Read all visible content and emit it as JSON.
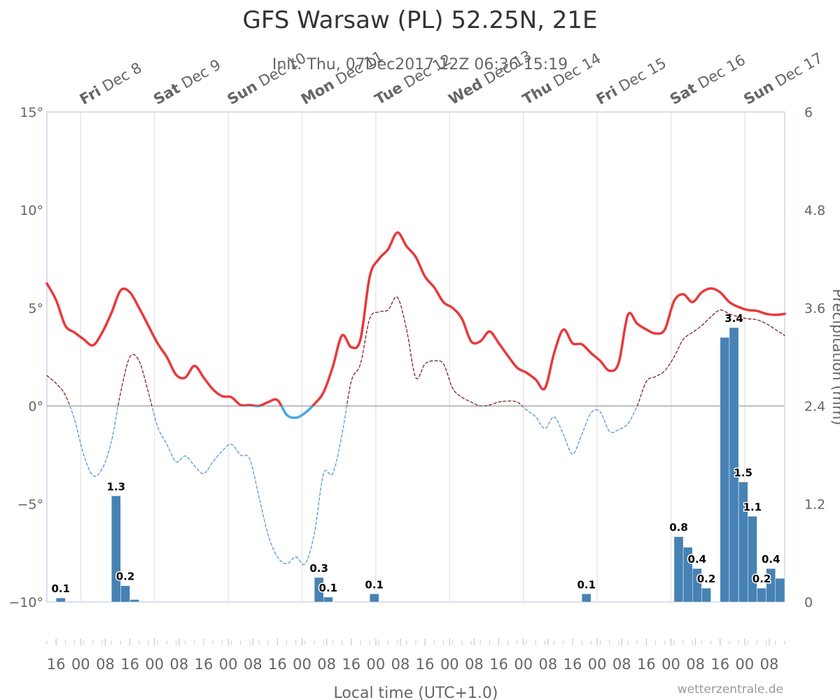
{
  "chart_data": {
    "type": "line",
    "title": "GFS Warsaw (PL) 52.25N, 21E",
    "subtitle": "Init: Thu, 07Dec2017 12Z 06:36 15:19",
    "x_label": "Local time (UTC+1.0)",
    "y2_label": "Precipitation (mm)",
    "credit": "wetterzentrale.de",
    "xlim": [
      0,
      240
    ],
    "ylim": [
      -10,
      15
    ],
    "yticks": [
      {
        "value": -10,
        "label": "−10°"
      },
      {
        "value": -5,
        "label": "−5°"
      },
      {
        "value": 0,
        "label": "0°"
      },
      {
        "value": 5,
        "label": "5°"
      },
      {
        "value": 10,
        "label": "10°"
      },
      {
        "value": 15,
        "label": "15°"
      }
    ],
    "y2lim": [
      0,
      6
    ],
    "y2ticks": [
      0,
      1.2,
      2.4,
      3.6,
      4.8,
      6
    ],
    "threshold": 0,
    "xticks": [
      {
        "value": 3,
        "label": "16"
      },
      {
        "value": 11,
        "label": "00"
      },
      {
        "value": 19,
        "label": "08"
      },
      {
        "value": 27,
        "label": "16"
      },
      {
        "value": 35,
        "label": "00"
      },
      {
        "value": 43,
        "label": "08"
      },
      {
        "value": 51,
        "label": "16"
      },
      {
        "value": 59,
        "label": "00"
      },
      {
        "value": 67,
        "label": "08"
      },
      {
        "value": 75,
        "label": "16"
      },
      {
        "value": 83,
        "label": "00"
      },
      {
        "value": 91,
        "label": "08"
      },
      {
        "value": 99,
        "label": "16"
      },
      {
        "value": 107,
        "label": "00"
      },
      {
        "value": 115,
        "label": "08"
      },
      {
        "value": 123,
        "label": "16"
      },
      {
        "value": 131,
        "label": "00"
      },
      {
        "value": 139,
        "label": "08"
      },
      {
        "value": 147,
        "label": "16"
      },
      {
        "value": 155,
        "label": "00"
      },
      {
        "value": 163,
        "label": "08"
      },
      {
        "value": 171,
        "label": "16"
      },
      {
        "value": 179,
        "label": "00"
      },
      {
        "value": 187,
        "label": "08"
      },
      {
        "value": 195,
        "label": "16"
      },
      {
        "value": 203,
        "label": "00"
      },
      {
        "value": 211,
        "label": "08"
      },
      {
        "value": 219,
        "label": "16"
      },
      {
        "value": 227,
        "label": "00"
      },
      {
        "value": 235,
        "label": "08"
      }
    ],
    "day_ticks": [
      {
        "value": 11,
        "weekday": "Fri",
        "date": "Dec 8"
      },
      {
        "value": 35,
        "weekday": "Sat",
        "date": "Dec 9"
      },
      {
        "value": 59,
        "weekday": "Sun",
        "date": "Dec 10"
      },
      {
        "value": 83,
        "weekday": "Mon",
        "date": "Dec 11"
      },
      {
        "value": 107,
        "weekday": "Tue",
        "date": "Dec 12"
      },
      {
        "value": 131,
        "weekday": "Wed",
        "date": "Dec 13"
      },
      {
        "value": 155,
        "weekday": "Thu",
        "date": "Dec 14"
      },
      {
        "value": 179,
        "weekday": "Fri",
        "date": "Dec 15"
      },
      {
        "value": 203,
        "weekday": "Sat",
        "date": "Dec 16"
      },
      {
        "value": 227,
        "weekday": "Sun",
        "date": "Dec 17"
      }
    ],
    "series": [
      {
        "type": "line",
        "color": "#e8393c",
        "negative_color": "#4aa8e0",
        "width": 3.5,
        "dashed": false,
        "x": [
          0,
          3,
          6,
          9,
          12,
          15,
          18,
          21,
          24,
          27,
          30,
          33,
          36,
          39,
          42,
          45,
          48,
          51,
          54,
          57,
          60,
          63,
          66,
          69,
          72,
          75,
          78,
          81,
          84,
          87,
          90,
          93,
          96,
          99,
          102,
          105,
          108,
          111,
          114,
          117,
          120,
          123,
          126,
          129,
          132,
          135,
          138,
          141,
          144,
          147,
          150,
          153,
          156,
          159,
          162,
          165,
          168,
          171,
          174,
          177,
          180,
          183,
          186,
          189,
          192,
          195,
          198,
          201,
          204,
          207,
          210,
          213,
          216,
          219,
          222,
          225,
          228,
          231,
          234,
          237,
          240
        ],
        "values": [
          6.25,
          5.4,
          4.1,
          3.75,
          3.4,
          3.1,
          3.75,
          4.75,
          5.9,
          5.8,
          5.0,
          4.1,
          3.2,
          2.5,
          1.6,
          1.45,
          2.05,
          1.45,
          0.85,
          0.5,
          0.45,
          0.05,
          0.05,
          0,
          0.2,
          0.3,
          -0.45,
          -0.6,
          -0.35,
          0.1,
          0.7,
          2.0,
          3.6,
          3.0,
          3.4,
          6.6,
          7.5,
          8.0,
          8.85,
          8.15,
          7.6,
          6.6,
          6.05,
          5.3,
          5.0,
          4.45,
          3.3,
          3.3,
          3.8,
          3.2,
          2.55,
          1.95,
          1.7,
          1.35,
          0.9,
          2.7,
          3.9,
          3.2,
          3.15,
          2.7,
          2.3,
          1.8,
          2.2,
          4.65,
          4.2,
          3.9,
          3.7,
          3.9,
          5.35,
          5.7,
          5.3,
          5.8,
          6.0,
          5.8,
          5.3,
          5.05,
          4.9,
          4.85,
          4.7,
          4.65,
          4.7
        ]
      },
      {
        "type": "line",
        "color": "#7a1010",
        "negative_color": "#4a90d9",
        "width": 1.2,
        "dashed": true,
        "x": [
          0,
          3,
          6,
          9,
          12,
          15,
          18,
          21,
          24,
          27,
          30,
          33,
          36,
          39,
          42,
          45,
          48,
          51,
          54,
          57,
          60,
          63,
          66,
          69,
          72,
          75,
          78,
          81,
          84,
          87,
          90,
          93,
          96,
          99,
          102,
          105,
          108,
          111,
          114,
          117,
          120,
          123,
          126,
          129,
          132,
          135,
          138,
          141,
          144,
          147,
          150,
          153,
          156,
          159,
          162,
          165,
          168,
          171,
          174,
          177,
          180,
          183,
          186,
          189,
          192,
          195,
          198,
          201,
          204,
          207,
          210,
          213,
          216,
          219,
          222,
          225,
          228,
          231,
          234,
          237,
          240
        ],
        "values": [
          1.55,
          1.15,
          0.55,
          -0.7,
          -2.5,
          -3.55,
          -3.2,
          -1.8,
          0.7,
          2.5,
          2.3,
          0.7,
          -1.05,
          -1.95,
          -2.85,
          -2.55,
          -3.05,
          -3.45,
          -2.85,
          -2.3,
          -1.95,
          -2.5,
          -2.7,
          -4.65,
          -6.6,
          -7.7,
          -8.05,
          -7.7,
          -8.05,
          -6.5,
          -3.45,
          -3.45,
          -1.45,
          1.25,
          2.15,
          4.45,
          4.8,
          4.9,
          5.55,
          3.9,
          1.45,
          2.15,
          2.3,
          2.15,
          0.9,
          0.45,
          0.2,
          0,
          0.05,
          0.2,
          0.25,
          0.2,
          -0.2,
          -0.55,
          -1.15,
          -0.55,
          -1.45,
          -2.45,
          -1.45,
          -0.35,
          -0.3,
          -1.3,
          -1.2,
          -0.9,
          0,
          1.25,
          1.5,
          1.8,
          2.5,
          3.4,
          3.75,
          4.1,
          4.55,
          4.9,
          4.7,
          4.55,
          4.45,
          4.4,
          4.2,
          3.9,
          3.6
        ]
      },
      {
        "type": "bar",
        "axis": "y2",
        "color": "#4682b4",
        "x": [
          3,
          21,
          24,
          27,
          87,
          90,
          105,
          174,
          204,
          207,
          210,
          213,
          219,
          222,
          225,
          228,
          231,
          234,
          237
        ],
        "values": [
          0.05,
          1.3,
          0.2,
          0.03,
          0.3,
          0.06,
          0.1,
          0.1,
          0.8,
          0.67,
          0.41,
          0.17,
          3.24,
          3.36,
          1.47,
          1.05,
          0.17,
          0.41,
          0.29
        ],
        "value_labels": [
          "0.1",
          "1.3",
          "0.2",
          null,
          "0.3",
          "0.1",
          "0.1",
          "0.1",
          "0.8",
          null,
          "0.4",
          "0.2",
          null,
          "3.4",
          "1.5",
          "1.1",
          "0.2",
          "0.4",
          null
        ]
      }
    ]
  }
}
